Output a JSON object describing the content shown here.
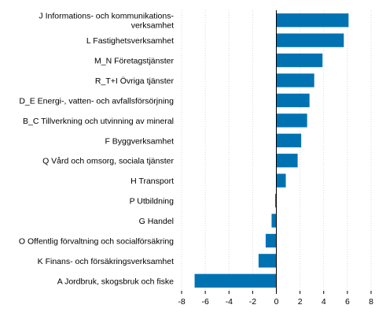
{
  "chart_data": {
    "type": "bar",
    "orientation": "horizontal",
    "title": "",
    "xlabel": "",
    "ylabel": "",
    "categories": [
      [
        "J Informations- och kommunikations-",
        "verksamhet"
      ],
      [
        "L Fastighetsverksamhet"
      ],
      [
        "M_N Företagstjänster"
      ],
      [
        "R_T+I Övriga tjänster"
      ],
      [
        "D_E Energi-, vatten- och avfallsförsörjning"
      ],
      [
        "B_C Tillverkning och utvinning av mineral"
      ],
      [
        "F Byggverksamhet"
      ],
      [
        "Q Vård och omsorg, sociala tjänster"
      ],
      [
        "H Transport"
      ],
      [
        "P Utbildning"
      ],
      [
        "G Handel"
      ],
      [
        "O Offentlig förvaltning och socialförsäkring"
      ],
      [
        "K Finans- och försäkringsverksamhet"
      ],
      [
        "A Jordbruk, skogsbruk och fiske"
      ]
    ],
    "values": [
      6.1,
      5.7,
      3.9,
      3.2,
      2.8,
      2.6,
      2.1,
      1.8,
      0.8,
      -0.1,
      -0.4,
      -0.9,
      -1.5,
      -6.9
    ],
    "xlim": [
      -8,
      8
    ],
    "xticks": [
      -8,
      -6,
      -4,
      -2,
      0,
      2,
      4,
      6,
      8
    ],
    "grid": "vertical",
    "legend": "none",
    "bar_color": "#0072b2",
    "grid_color": "#d9d9d9",
    "axis_color": "#000000"
  }
}
